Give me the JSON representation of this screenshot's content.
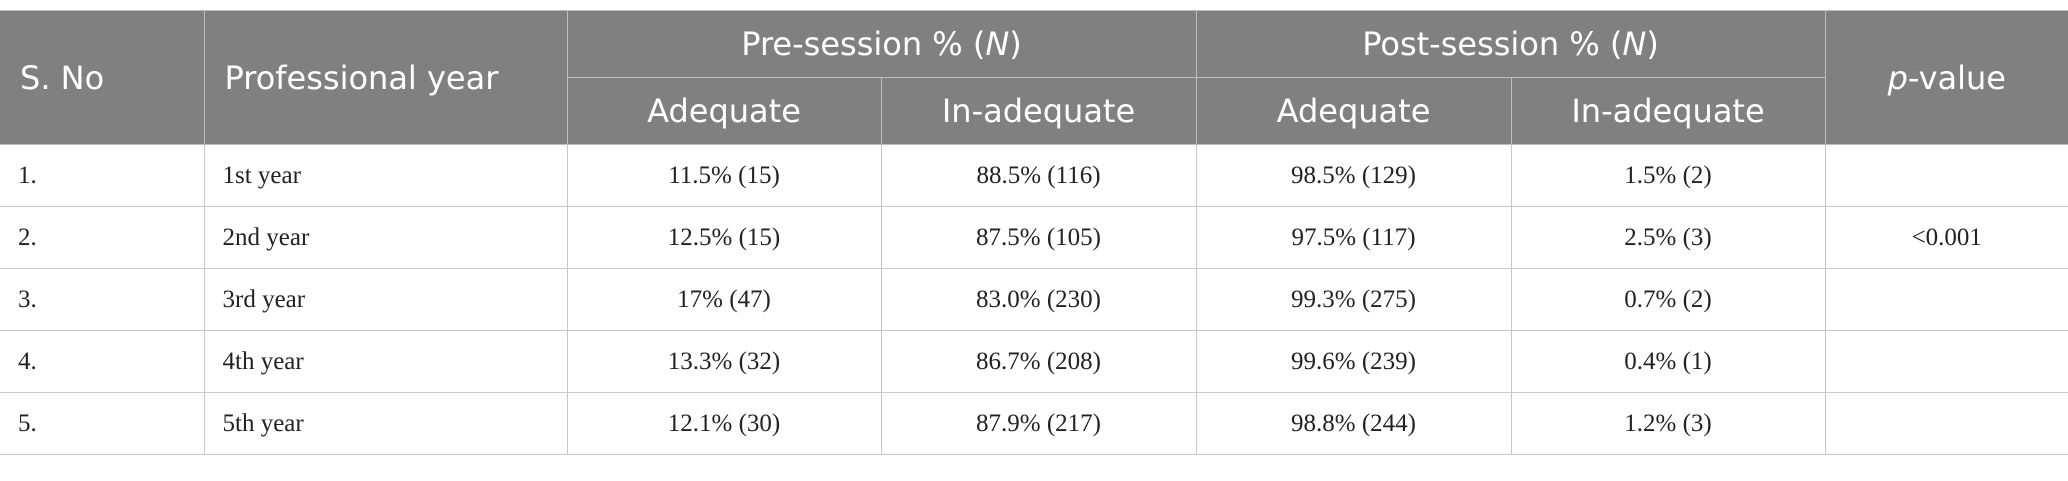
{
  "table": {
    "header": {
      "s_no": "S. No",
      "professional_year": "Professional year",
      "pre_session": [
        "Pre-session % (",
        "N",
        ")"
      ],
      "post_session": [
        "Post-session % (",
        "N",
        ")"
      ],
      "p_value": [
        "p",
        "-value"
      ],
      "sub": [
        "Adequate",
        "In-adequate",
        "Adequate",
        "In-adequate"
      ]
    },
    "rows": [
      [
        "1.",
        "1st year",
        "11.5% (15)",
        "88.5% (116)",
        "98.5% (129)",
        "1.5% (2)"
      ],
      [
        "2.",
        "2nd year",
        "12.5% (15)",
        "87.5% (105)",
        "97.5% (117)",
        "2.5% (3)"
      ],
      [
        "3.",
        "3rd year",
        "17% (47)",
        "83.0% (230)",
        "99.3% (275)",
        "0.7% (2)"
      ],
      [
        "4.",
        "4th year",
        "13.3% (32)",
        "86.7% (208)",
        "99.6% (239)",
        "0.4% (1)"
      ],
      [
        "5.",
        "5th year",
        "12.1% (30)",
        "87.9% (217)",
        "98.8% (244)",
        "1.2% (3)"
      ]
    ],
    "p_value": "<0.001"
  }
}
